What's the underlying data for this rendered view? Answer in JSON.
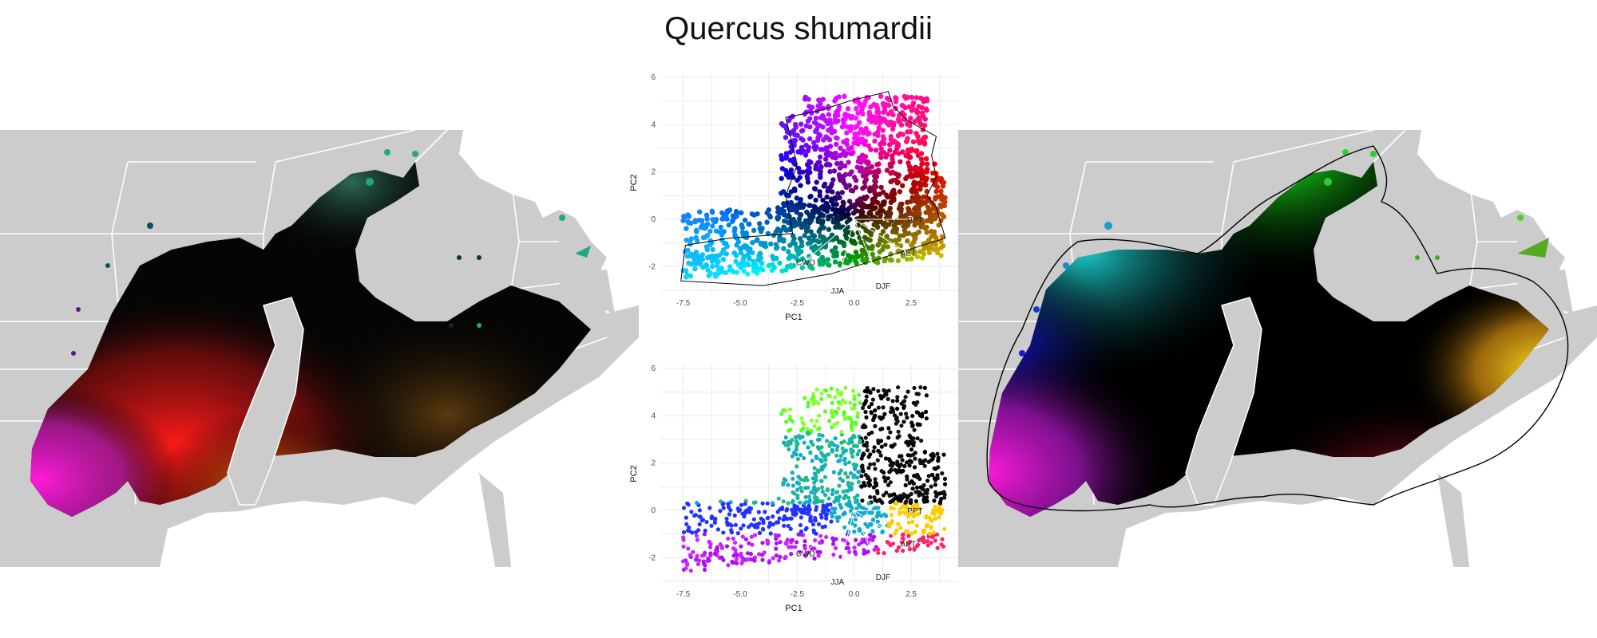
{
  "title": "Quercus shumardii",
  "colors": {
    "land": "#cccccc",
    "border": "#ffffff",
    "plot_grid": "#ebebeb",
    "hull": "#000000"
  },
  "chart_data": [
    {
      "type": "scatter",
      "name": "pca-continuous",
      "xlabel": "PC1",
      "ylabel": "PC2",
      "xlim": [
        -8.5,
        4.6
      ],
      "ylim": [
        -3.1,
        6.2
      ],
      "xticks": [
        -7.5,
        -5.0,
        -2.5,
        0.0,
        2.5
      ],
      "yticks": [
        -2,
        0,
        2,
        4,
        6
      ],
      "grid": true,
      "loadings": [
        {
          "label": "PPT",
          "x": 2.6,
          "y": 0.0
        },
        {
          "label": "AET",
          "x": 2.3,
          "y": -1.4
        },
        {
          "label": "DJF",
          "x": 1.2,
          "y": -2.8
        },
        {
          "label": "JJA",
          "x": -0.8,
          "y": -3.0
        },
        {
          "label": "CWD",
          "x": -2.2,
          "y": -1.8
        }
      ]
    },
    {
      "type": "scatter",
      "name": "pca-clustered",
      "xlabel": "PC1",
      "ylabel": "PC2",
      "xlim": [
        -8.5,
        4.6
      ],
      "ylim": [
        -3.1,
        6.2
      ],
      "xticks": [
        -7.5,
        -5.0,
        -2.5,
        0.0,
        2.5
      ],
      "yticks": [
        -2,
        0,
        2,
        4,
        6
      ],
      "grid": true,
      "loadings": [
        {
          "label": "PPT",
          "x": 2.6,
          "y": 0.0
        },
        {
          "label": "AET",
          "x": 2.3,
          "y": -1.4
        },
        {
          "label": "DJF",
          "x": 1.2,
          "y": -2.8
        },
        {
          "label": "JJA",
          "x": -0.8,
          "y": -3.0
        },
        {
          "label": "CWD",
          "x": -2.2,
          "y": -1.8
        }
      ]
    }
  ]
}
